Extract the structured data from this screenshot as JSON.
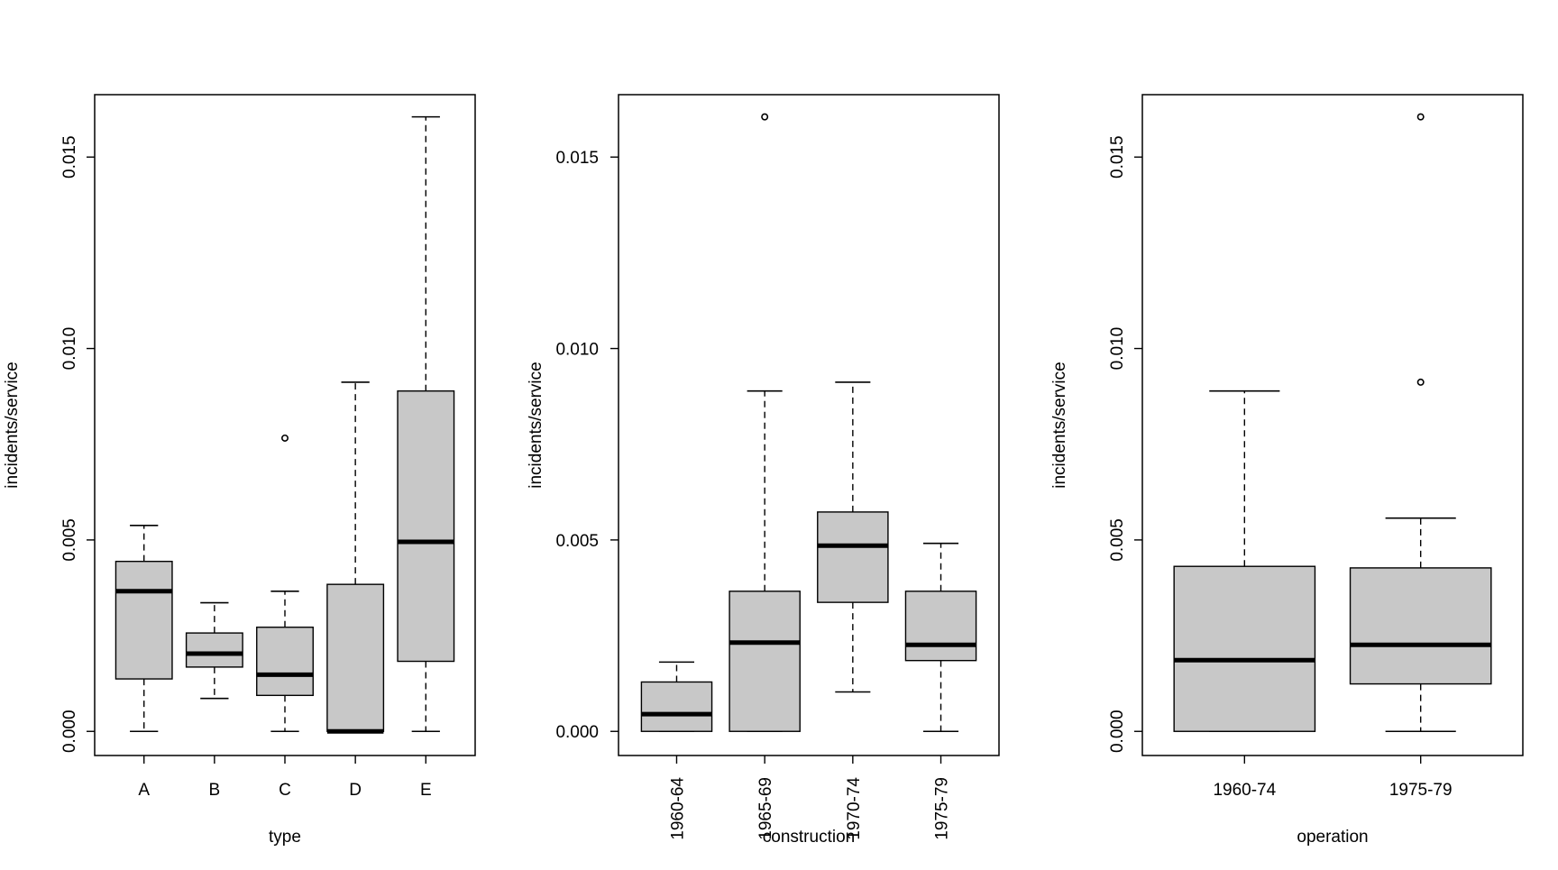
{
  "chart_data": [
    {
      "type": "box",
      "xlabel": "type",
      "ylabel": "incidents/service",
      "ylim": [
        -0.00063,
        0.01663
      ],
      "yticks": [
        0.0,
        0.005,
        0.01,
        0.015
      ],
      "ytick_labels": [
        "0.000",
        "0.005",
        "0.010",
        "0.015"
      ],
      "xtick_orientation": "horizontal",
      "categories": [
        "A",
        "B",
        "C",
        "D",
        "E"
      ],
      "boxes": [
        {
          "label": "A",
          "min": 0.0,
          "q1": 0.00137,
          "median": 0.00366,
          "q3": 0.00444,
          "max": 0.00538,
          "outliers": []
        },
        {
          "label": "B",
          "min": 0.00086,
          "q1": 0.00168,
          "median": 0.00203,
          "q3": 0.00257,
          "max": 0.00336,
          "outliers": []
        },
        {
          "label": "C",
          "min": 0.0,
          "q1": 0.00094,
          "median": 0.00148,
          "q3": 0.00272,
          "max": 0.00366,
          "outliers": [
            0.00766
          ]
        },
        {
          "label": "D",
          "min": 0.0,
          "q1": 0.0,
          "median": 0.0,
          "q3": 0.00384,
          "max": 0.00912,
          "outliers": []
        },
        {
          "label": "E",
          "min": 0.0,
          "q1": 0.00183,
          "median": 0.00495,
          "q3": 0.00889,
          "max": 0.01605,
          "outliers": []
        }
      ]
    },
    {
      "type": "box",
      "xlabel": "construction",
      "ylabel": "incidents/service",
      "ylim": [
        -0.00063,
        0.01663
      ],
      "yticks": [
        0.0,
        0.005,
        0.01,
        0.015
      ],
      "ytick_labels": [
        "0.000",
        "0.005",
        "0.010",
        "0.015"
      ],
      "xtick_orientation": "vertical",
      "categories": [
        "1960-64",
        "1965-69",
        "1970-74",
        "1975-79"
      ],
      "boxes": [
        {
          "label": "1960-64",
          "min": 0.0,
          "q1": 0.0,
          "median": 0.00045,
          "q3": 0.00129,
          "max": 0.00181,
          "outliers": []
        },
        {
          "label": "1965-69",
          "min": 0.0,
          "q1": 0.0,
          "median": 0.00232,
          "q3": 0.00366,
          "max": 0.00889,
          "outliers": [
            0.01605
          ]
        },
        {
          "label": "1970-74",
          "min": 0.00103,
          "q1": 0.00337,
          "median": 0.00485,
          "q3": 0.00573,
          "max": 0.00912,
          "outliers": []
        },
        {
          "label": "1975-79",
          "min": 0.0,
          "q1": 0.00185,
          "median": 0.00226,
          "q3": 0.00366,
          "max": 0.00491,
          "outliers": []
        }
      ]
    },
    {
      "type": "box",
      "xlabel": "operation",
      "ylabel": "incidents/service",
      "ylim": [
        -0.00063,
        0.01663
      ],
      "yticks": [
        0.0,
        0.005,
        0.01,
        0.015
      ],
      "ytick_labels": [
        "0.000",
        "0.005",
        "0.010",
        "0.015"
      ],
      "xtick_orientation": "horizontal",
      "categories": [
        "1960-74",
        "1975-79"
      ],
      "boxes": [
        {
          "label": "1960-74",
          "min": 0.0,
          "q1": 0.0,
          "median": 0.00186,
          "q3": 0.00431,
          "max": 0.00889,
          "outliers": []
        },
        {
          "label": "1975-79",
          "min": 0.0,
          "q1": 0.00124,
          "median": 0.00226,
          "q3": 0.00427,
          "max": 0.00557,
          "outliers": [
            0.00912,
            0.01605
          ]
        }
      ]
    }
  ],
  "colors": {
    "box_fill": "#c8c8c8",
    "line": "#000000",
    "background": "#ffffff"
  }
}
